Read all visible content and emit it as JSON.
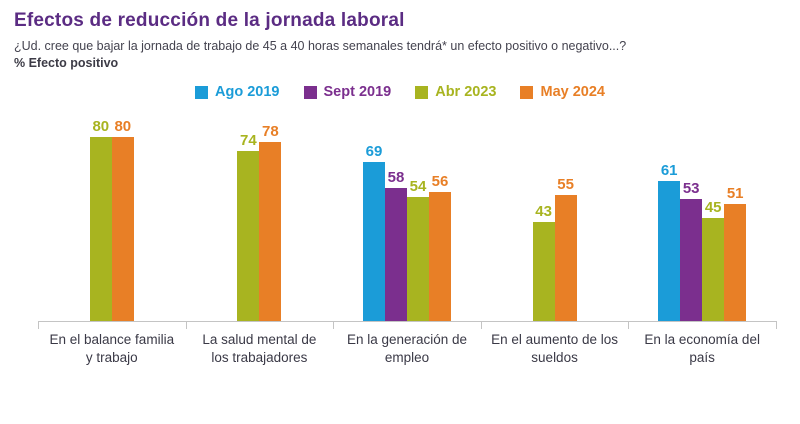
{
  "header": {
    "title": "Efectos de reducción de la jornada laboral",
    "subtitle": "¿Ud. cree que bajar la jornada de trabajo de 45 a 40 horas semanales tendrá* un efecto positivo o negativo...?",
    "metric_label": "% Efecto positivo"
  },
  "chart_data": {
    "type": "bar",
    "title": "Efectos de reducción de la jornada laboral",
    "subtitle": "% Efecto positivo",
    "categories": [
      "En el balance familia y trabajo",
      "La salud mental de los trabajadores",
      "En la generación de empleo",
      "En el aumento de los sueldos",
      "En la economía del país"
    ],
    "series": [
      {
        "name": "Ago 2019",
        "color": "#1b9cd8",
        "values": [
          null,
          null,
          69,
          null,
          61
        ]
      },
      {
        "name": "Sept 2019",
        "color": "#7b2f8e",
        "values": [
          null,
          null,
          58,
          null,
          53
        ]
      },
      {
        "name": "Abr 2023",
        "color": "#a8b420",
        "values": [
          80,
          74,
          54,
          43,
          45
        ]
      },
      {
        "name": "May 2024",
        "color": "#e87f26",
        "values": [
          80,
          78,
          56,
          55,
          51
        ]
      }
    ],
    "ylim": [
      0,
      100
    ],
    "value_labels": true,
    "legend_position": "top",
    "grid": false
  }
}
